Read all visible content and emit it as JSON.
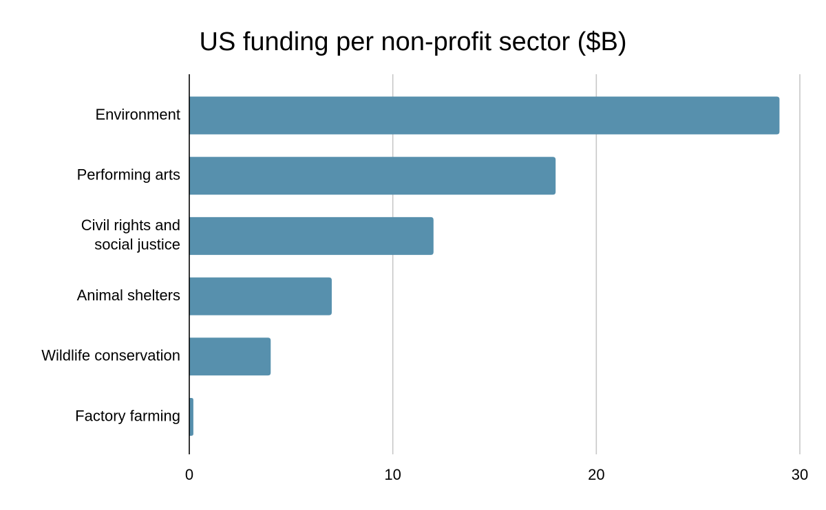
{
  "chart_data": {
    "type": "bar",
    "orientation": "horizontal",
    "title": "US funding per non-profit sector ($B)",
    "categories": [
      [
        "Environment"
      ],
      [
        "Performing arts"
      ],
      [
        "Civil rights and",
        "social justice"
      ],
      [
        "Animal shelters"
      ],
      [
        "Wildlife conservation"
      ],
      [
        "Factory farming"
      ]
    ],
    "values": [
      29,
      18,
      12,
      7,
      4,
      0.2
    ],
    "xlabel": "",
    "ylabel": "",
    "xlim": [
      0,
      30
    ],
    "xticks": [
      0,
      10,
      20,
      30
    ],
    "xtick_labels": [
      "0",
      "10",
      "20",
      "30"
    ],
    "grid": true,
    "legend": "none",
    "bar_color": "#5790ad",
    "grid_color": "#c7c7c7",
    "axis_color": "#000000"
  }
}
